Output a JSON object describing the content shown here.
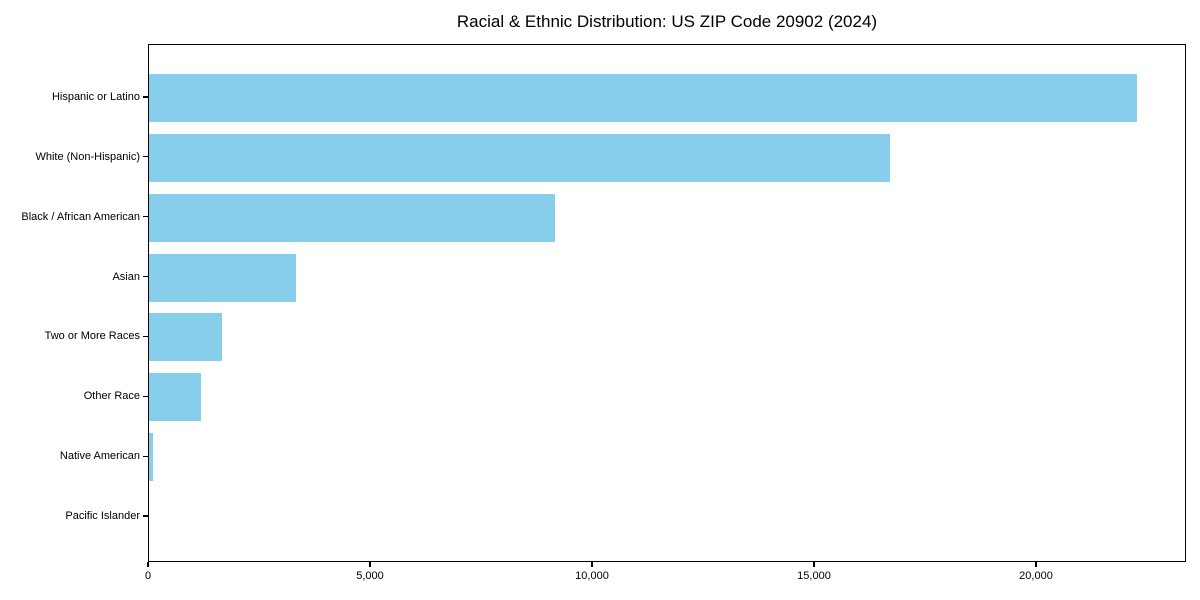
{
  "chart_data": {
    "type": "bar",
    "orientation": "horizontal",
    "title": "Racial & Ethnic Distribution: US ZIP Code 20902 (2024)",
    "categories": [
      "Hispanic or Latino",
      "White (Non-Hispanic)",
      "Black / African American",
      "Asian",
      "Two or More Races",
      "Other Race",
      "Native American",
      "Pacific Islander"
    ],
    "values": [
      22250,
      16700,
      9140,
      3320,
      1650,
      1160,
      100,
      0
    ],
    "xlabel": "",
    "ylabel": "",
    "xlim": [
      0,
      23378
    ],
    "x_ticks": [
      0,
      5000,
      10000,
      15000,
      20000
    ],
    "x_tick_labels": [
      "0",
      "5,000",
      "10,000",
      "15,000",
      "20,000"
    ],
    "bar_color": "#87CEEB",
    "background_color": "#ffffff",
    "spine_color": "#000000",
    "grid": false,
    "legend": false
  }
}
